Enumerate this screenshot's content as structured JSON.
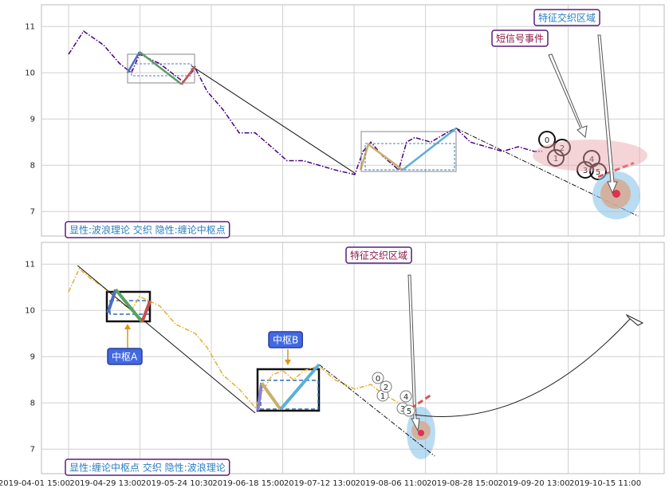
{
  "chart_data": [
    {
      "type": "line",
      "ylim": [
        6.47,
        11.47
      ],
      "yticks": [
        7,
        8,
        9,
        10,
        11
      ],
      "xlim": [
        -7.6,
        166.9
      ],
      "grid": true,
      "series": [
        {
          "color": "#4b0082",
          "linestyle": "dashdot",
          "linewidth": 1.5,
          "x": [
            0,
            4.2,
            9.8,
            14.3,
            17.6,
            19.9,
            25.5,
            32.2,
            35.5,
            38.8,
            43.3,
            47.8,
            52.3,
            56.8,
            61.2,
            65.7,
            70.2,
            74.6,
            80.2,
            82.5,
            84.7,
            88.0,
            92.5,
            94.7,
            97.0,
            101.5,
            105.9,
            108.6,
            112.6,
            117.1,
            121.6,
            126.0,
            130.5,
            132.7
          ],
          "values": [
            10.4,
            10.9,
            10.6,
            10.2,
            10.0,
            10.4,
            10.2,
            9.8,
            10.1,
            9.6,
            9.2,
            8.7,
            8.7,
            8.4,
            8.1,
            8.1,
            8.0,
            7.9,
            7.8,
            8.3,
            8.5,
            8.2,
            7.9,
            8.5,
            8.6,
            8.5,
            8.7,
            8.8,
            8.5,
            8.4,
            8.3,
            8.4,
            8.3,
            8.3
          ]
        },
        {
          "color": "#111111",
          "linestyle": "solid",
          "linewidth": 1,
          "x": [
            34.4,
            80.4
          ],
          "values": [
            10.15,
            7.82
          ]
        },
        {
          "color": "#111111",
          "linestyle": "dashdot",
          "linewidth": 1,
          "x": [
            108.6,
            159.6
          ],
          "values": [
            8.8,
            6.9
          ]
        },
        {
          "color": "#4a6fc0",
          "linestyle": "solid",
          "linewidth": 2.5,
          "x": [
            16.5,
            19.9
          ],
          "values": [
            10.0,
            10.45
          ]
        },
        {
          "color": "#5aa060",
          "linestyle": "solid",
          "linewidth": 2.5,
          "x": [
            19.9,
            31.7
          ],
          "values": [
            10.45,
            9.75
          ]
        },
        {
          "color": "#c8504a",
          "linestyle": "solid",
          "linewidth": 2.5,
          "x": [
            31.7,
            35.5
          ],
          "values": [
            9.75,
            10.15
          ]
        },
        {
          "color": "#c8b06a",
          "linestyle": "solid",
          "linewidth": 2.5,
          "x": [
            81.8,
            84.0,
            93.6
          ],
          "values": [
            7.9,
            8.45,
            7.9
          ]
        },
        {
          "color": "#5ab0d6",
          "linestyle": "solid",
          "linewidth": 2.5,
          "x": [
            93.6,
            108.6
          ],
          "values": [
            7.9,
            8.8
          ]
        },
        {
          "color": "#d9534f",
          "linestyle": "dashed",
          "linewidth": 3,
          "x": [
            148.4,
            158.4
          ],
          "values": [
            7.75,
            8.05
          ]
        }
      ],
      "note": "显性:波浪理论 交织 隐性:缠论中枢点",
      "labels": [
        "特征交织区域",
        "短信号事件"
      ],
      "point_labels": [
        "0",
        "1",
        "2",
        "3",
        "4",
        "5"
      ]
    },
    {
      "type": "line",
      "ylim": [
        6.47,
        11.47
      ],
      "yticks": [
        7,
        8,
        9,
        10,
        11
      ],
      "xlim": [
        -7.6,
        166.9
      ],
      "grid": true,
      "xticks": [
        {
          "value": 0,
          "label": "2019-04-01 15:00"
        },
        {
          "value": 20,
          "label": "2019-04-29 13:00"
        },
        {
          "value": 40,
          "label": "2019-05-24 10:30"
        },
        {
          "value": 60,
          "label": "2019-06-18 15:00"
        },
        {
          "value": 80,
          "label": "2019-07-12 13:00"
        },
        {
          "value": 100,
          "label": "2019-08-06 11:00"
        },
        {
          "value": 120,
          "label": "2019-08-28 15:00"
        },
        {
          "value": 140,
          "label": "2019-09-20 13:00"
        },
        {
          "value": 160,
          "label": "2019-10-15 11:00"
        }
      ],
      "series": [
        {
          "color": "#e8b030",
          "linestyle": "dashdot",
          "linewidth": 1.5,
          "x": [
            0,
            3.0,
            6.0,
            9.8,
            14.3,
            17.6,
            19.9,
            25.5,
            30.0,
            35.5,
            38.8,
            43.3,
            47.8,
            52.3,
            54.0,
            57.0,
            60.0,
            63.0,
            66.0,
            70.2,
            74.6,
            80.2,
            84.7,
            88.0,
            92.5,
            97.0
          ],
          "values": [
            10.4,
            10.9,
            10.7,
            10.5,
            10.2,
            10.0,
            10.3,
            10.1,
            9.7,
            9.5,
            9.2,
            8.6,
            8.3,
            7.9,
            8.2,
            8.6,
            8.7,
            8.5,
            8.7,
            8.8,
            8.5,
            8.3,
            8.4,
            8.2,
            8.0,
            7.9
          ]
        },
        {
          "color": "#111111",
          "linestyle": "solid",
          "linewidth": 1,
          "x": [
            2.5,
            52.3
          ],
          "values": [
            10.97,
            7.78
          ]
        },
        {
          "color": "#111111",
          "linestyle": "dashdot",
          "linewidth": 1,
          "x": [
            70.2,
            102.6
          ],
          "values": [
            8.83,
            6.85
          ]
        },
        {
          "color": "#4a6fc0",
          "linestyle": "solid",
          "linewidth": 4,
          "x": [
            11.0,
            13.2
          ],
          "values": [
            9.95,
            10.45
          ]
        },
        {
          "color": "#5aa060",
          "linestyle": "solid",
          "linewidth": 4,
          "x": [
            13.2,
            20.6
          ],
          "values": [
            10.45,
            9.75
          ]
        },
        {
          "color": "#c8504a",
          "linestyle": "solid",
          "linewidth": 4,
          "x": [
            20.6,
            22.8
          ],
          "values": [
            9.75,
            10.2
          ]
        },
        {
          "color": "#8a7fcf",
          "linestyle": "solid",
          "linewidth": 4,
          "x": [
            53.0,
            54.1
          ],
          "values": [
            7.83,
            8.43
          ]
        },
        {
          "color": "#c8b06a",
          "linestyle": "solid",
          "linewidth": 4,
          "x": [
            54.1,
            59.4
          ],
          "values": [
            8.43,
            7.86
          ]
        },
        {
          "color": "#5ab0d6",
          "linestyle": "solid",
          "linewidth": 4,
          "x": [
            59.4,
            70.2
          ],
          "values": [
            7.86,
            8.83
          ]
        },
        {
          "color": "#d9534f",
          "linestyle": "dashed",
          "linewidth": 3,
          "x": [
            95.9,
            101.5
          ],
          "values": [
            7.88,
            8.17
          ]
        }
      ],
      "note": "显性:缠论中枢点 交织 隐性:波浪理论",
      "labels": [
        "特征交织区域",
        "中枢A",
        "中枢B"
      ],
      "point_labels": [
        "0",
        "1",
        "2",
        "3",
        "4",
        "5"
      ]
    }
  ]
}
